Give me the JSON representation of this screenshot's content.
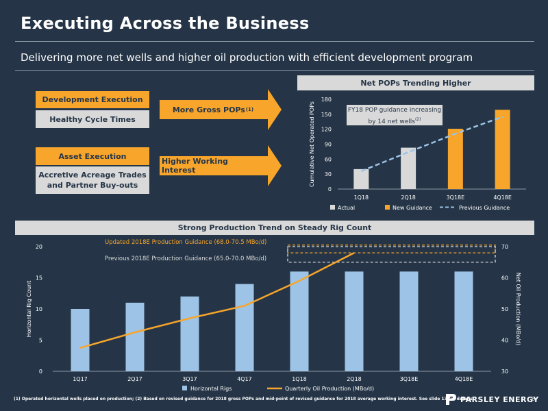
{
  "header": {
    "title": "Executing Across the Business",
    "subtitle": "Delivering more net wells and higher oil production with efficient development program"
  },
  "left_panel": {
    "dev_execution": "Development Execution",
    "healthy_cycle": "Healthy Cycle Times",
    "asset_execution": "Asset Execution",
    "accretive_line1": "Accretive Acreage Trades",
    "accretive_line2": "and Partner Buy-outs",
    "arrow1_label": "More Gross POPs",
    "arrow1_sup": "(1)",
    "arrow2_label": "Higher Working Interest"
  },
  "chart_top": {
    "banner": "Net POPs Trending Higher",
    "callout_line1": "FY18 POP guidance increasing",
    "callout_line2": "by 14 net wells",
    "callout_sup": "(2)"
  },
  "chart_bottom": {
    "banner": "Strong Production Trend on Steady Rig Count",
    "updated_guidance": "Updated 2018E Production Guidance (68.0-70.5 MBo/d)",
    "previous_guidance": "Previous 2018E Production Guidance (65.0-70.0 MBo/d)"
  },
  "chart_data": [
    {
      "type": "bar",
      "title": "Net POPs Trending Higher",
      "ylabel": "Cumulative Net Operated POPs",
      "categories": [
        "1Q18",
        "2Q18",
        "3Q18E",
        "4Q18E"
      ],
      "ylim": [
        0,
        180
      ],
      "yticks": [
        0,
        30,
        60,
        90,
        120,
        150,
        180
      ],
      "series": [
        {
          "name": "Actual",
          "type": "bar",
          "values": [
            40,
            83,
            null,
            null
          ],
          "color": "#d9d9d9"
        },
        {
          "name": "New Guidance",
          "type": "bar",
          "values": [
            null,
            null,
            121,
            159
          ],
          "color": "#f7a52b"
        },
        {
          "name": "Previous Guidance",
          "type": "line",
          "style": "dashed",
          "values": [
            36,
            74,
            111,
            145
          ],
          "color": "#9dc3e6"
        }
      ],
      "legend": "bottom"
    },
    {
      "type": "bar",
      "title": "Strong Production Trend on Steady Rig Count",
      "ylabel": "Horizontal Rig Count",
      "y2label": "Net Oil Production (MBo/d)",
      "categories": [
        "1Q17",
        "2Q17",
        "3Q17",
        "4Q17",
        "1Q18",
        "2Q18",
        "3Q18E",
        "4Q18E"
      ],
      "ylim": [
        0,
        20
      ],
      "yticks": [
        0,
        5,
        10,
        15,
        20
      ],
      "y2lim": [
        30,
        70
      ],
      "y2ticks": [
        30,
        40,
        50,
        60,
        70
      ],
      "series": [
        {
          "name": "Horizontal Rigs",
          "type": "bar",
          "axis": "left",
          "values": [
            10,
            11,
            12,
            14,
            16,
            16,
            16,
            16
          ],
          "color": "#9dc3e6"
        },
        {
          "name": "Quarterly Oil Production (MBo/d)",
          "type": "line",
          "axis": "right",
          "values": [
            37.5,
            42.5,
            47,
            51,
            59,
            68,
            null,
            null
          ],
          "color": "#f7a52b"
        }
      ],
      "guidance_ranges": [
        {
          "label": "Updated 2018E Production Guidance (68.0-70.5 MBo/d)",
          "low": 68.0,
          "high": 70.5,
          "color": "#f7a52b"
        },
        {
          "label": "Previous 2018E Production Guidance (65.0-70.0 MBo/d)",
          "low": 65.0,
          "high": 70.0,
          "color": "#d9d9d9"
        }
      ],
      "legend": "bottom"
    }
  ],
  "footer": {
    "footnote": "(1) Operated horizontal wells placed on production; (2) Based on revised guidance for 2018 gross POPs and mid-point of revised guidance for 2018 average working interest. See slide 13 for details.",
    "logo": "PARSLEY ENERGY",
    "page": "6"
  }
}
